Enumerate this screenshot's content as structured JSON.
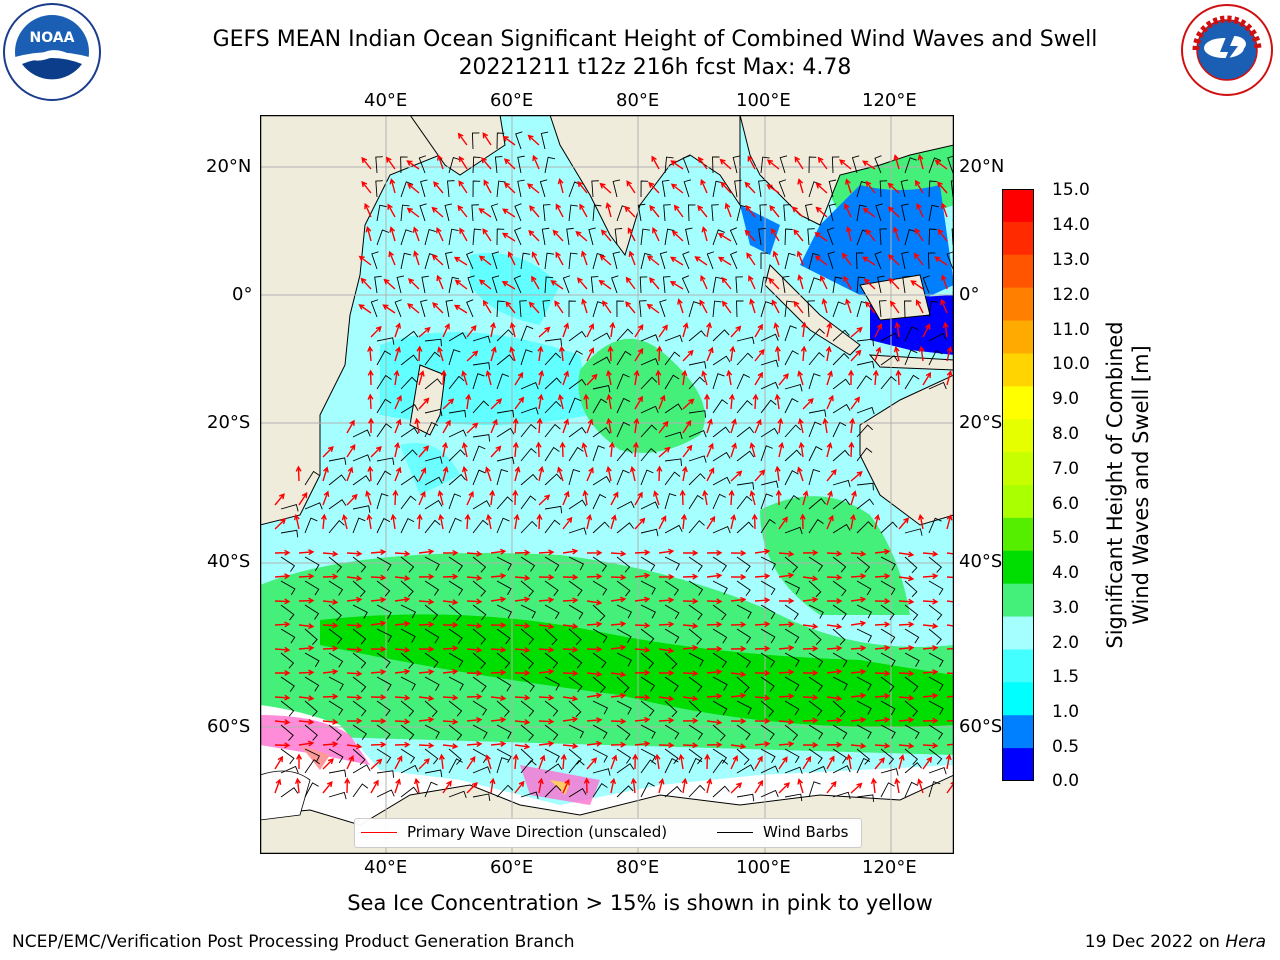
{
  "title": {
    "line1": "GEFS MEAN Indian Ocean Significant Height of Combined Wind Waves and Swell",
    "line2": "20221211 t12z 216h fcst   Max: 4.78"
  },
  "logos": {
    "left": {
      "name": "noaa-logo",
      "text": "NOAA",
      "ring_text": "NATIONAL OCEANIC AND ATMOSPHERIC ADMINISTRATION · U.S. DEPARTMENT OF COMMERCE"
    },
    "right": {
      "name": "nws-logo",
      "ring_text": "NATIONAL WEATHER SERVICE"
    }
  },
  "map": {
    "lon_labels": [
      "40°E",
      "60°E",
      "80°E",
      "100°E",
      "120°E"
    ],
    "lat_labels": [
      "20°N",
      "0°",
      "20°S",
      "40°S",
      "60°S"
    ],
    "lon_range": [
      20,
      130
    ],
    "lat_range": [
      -73,
      27
    ],
    "colors": {
      "land": "#efecdc",
      "ocean": "#a6ffff",
      "wave_arrow": "#ff0000",
      "wind_barb": "#000000",
      "grid": "#b0b0b0"
    }
  },
  "colorbar": {
    "label": "Significant Height of Combined Wind Waves and Swell [m]",
    "label_line1": "Significant Height of Combined",
    "label_line2": "Wind Waves and Swell [m]",
    "ticks": [
      "15.0",
      "14.0",
      "13.0",
      "12.0",
      "11.0",
      "10.0",
      "9.0",
      "8.0",
      "7.0",
      "6.0",
      "5.0",
      "4.0",
      "3.0",
      "2.0",
      "1.5",
      "1.0",
      "0.5",
      "0.0"
    ],
    "colors_top_to_bottom": [
      "#ff0000",
      "#ff2a00",
      "#ff5500",
      "#ff8000",
      "#ffaa00",
      "#ffd400",
      "#ffff00",
      "#e6ff00",
      "#c8ff00",
      "#aaff00",
      "#55ee00",
      "#00dd00",
      "#44f07a",
      "#a6ffff",
      "#44ffff",
      "#00ffff",
      "#0080ff",
      "#0000ff"
    ]
  },
  "legend": {
    "wave_label": "Primary Wave Direction (unscaled)",
    "wind_label": "Wind Barbs",
    "wave_color": "#ff0000",
    "wind_color": "#000000"
  },
  "bottom_note": "Sea Ice Concentration > 15% is shown in pink to yellow",
  "footer": {
    "left": "NCEP/EMC/Verification Post Processing Product Generation Branch",
    "right_date": "19 Dec 2022 on ",
    "right_host": "Hera"
  }
}
